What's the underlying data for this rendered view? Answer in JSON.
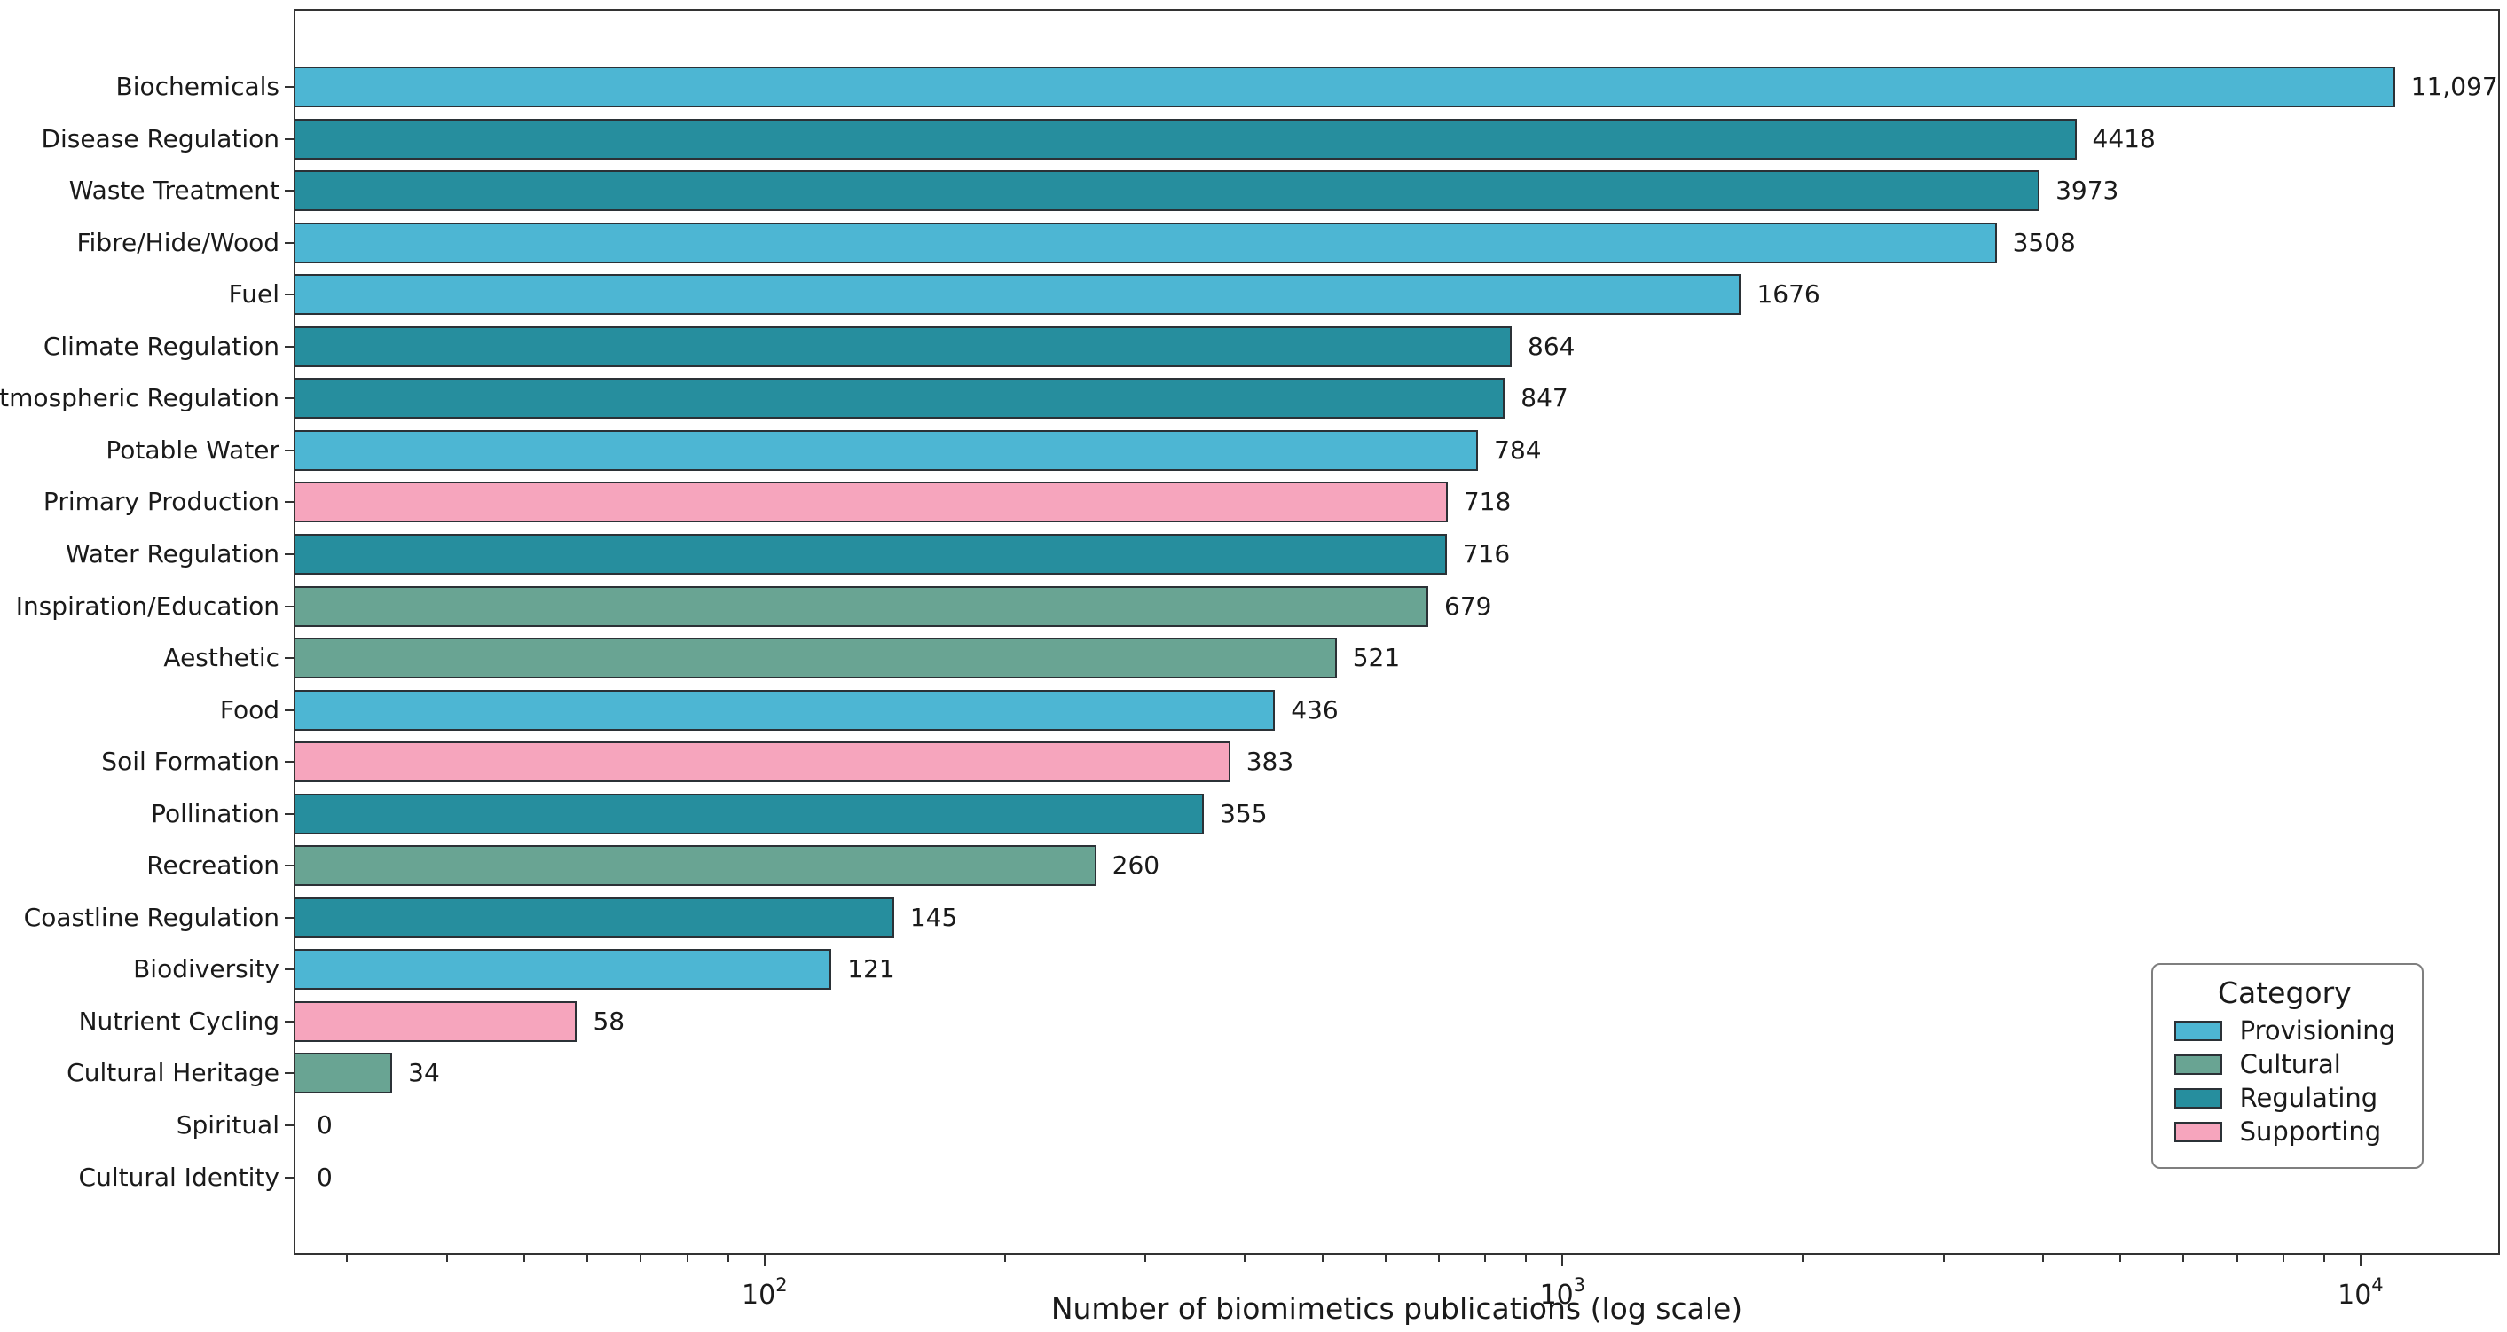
{
  "chart_data": {
    "type": "bar",
    "orientation": "horizontal",
    "x_scale": "log",
    "xlabel": "Number of biomimetics publications (log scale)",
    "xlim": [
      25.7,
      14950
    ],
    "grid": false,
    "x_ticks": [
      {
        "value": 100,
        "base": "10",
        "exp": "2",
        "label": "10^2"
      },
      {
        "value": 1000,
        "base": "10",
        "exp": "3",
        "label": "10^3"
      },
      {
        "value": 10000,
        "base": "10",
        "exp": "4",
        "label": "10^4"
      }
    ],
    "bars": [
      {
        "label": "Biochemicals",
        "value": 11097,
        "display": "11,097",
        "group": "Provisioning"
      },
      {
        "label": "Disease Regulation",
        "value": 4418,
        "display": "4418",
        "group": "Regulating"
      },
      {
        "label": "Waste Treatment",
        "value": 3973,
        "display": "3973",
        "group": "Regulating"
      },
      {
        "label": "Fibre/Hide/Wood",
        "value": 3508,
        "display": "3508",
        "group": "Provisioning"
      },
      {
        "label": "Fuel",
        "value": 1676,
        "display": "1676",
        "group": "Provisioning"
      },
      {
        "label": "Climate Regulation",
        "value": 864,
        "display": "864",
        "group": "Regulating"
      },
      {
        "label": "Atmospheric Regulation",
        "value": 847,
        "display": "847",
        "group": "Regulating"
      },
      {
        "label": "Potable Water",
        "value": 784,
        "display": "784",
        "group": "Provisioning"
      },
      {
        "label": "Primary Production",
        "value": 718,
        "display": "718",
        "group": "Supporting"
      },
      {
        "label": "Water Regulation",
        "value": 716,
        "display": "716",
        "group": "Regulating"
      },
      {
        "label": "Inspiration/Education",
        "value": 679,
        "display": "679",
        "group": "Cultural"
      },
      {
        "label": "Aesthetic",
        "value": 521,
        "display": "521",
        "group": "Cultural"
      },
      {
        "label": "Food",
        "value": 436,
        "display": "436",
        "group": "Provisioning"
      },
      {
        "label": "Soil Formation",
        "value": 383,
        "display": "383",
        "group": "Supporting"
      },
      {
        "label": "Pollination",
        "value": 355,
        "display": "355",
        "group": "Regulating"
      },
      {
        "label": "Recreation",
        "value": 260,
        "display": "260",
        "group": "Cultural"
      },
      {
        "label": "Coastline Regulation",
        "value": 145,
        "display": "145",
        "group": "Regulating"
      },
      {
        "label": "Biodiversity",
        "value": 121,
        "display": "121",
        "group": "Provisioning"
      },
      {
        "label": "Nutrient Cycling",
        "value": 58,
        "display": "58",
        "group": "Supporting"
      },
      {
        "label": "Cultural Heritage",
        "value": 34,
        "display": "34",
        "group": "Cultural"
      },
      {
        "label": "Spiritual",
        "value": 0,
        "display": "0",
        "group": "Cultural"
      },
      {
        "label": "Cultural Identity",
        "value": 0,
        "display": "0",
        "group": "Cultural"
      }
    ],
    "colors": {
      "Provisioning": "#4db6d3",
      "Cultural": "#69a493",
      "Regulating": "#268e9e",
      "Supporting": "#f6a5bd"
    },
    "edge_color": "#2b3136",
    "spine_color": "#333333",
    "text_color": "#1a1a1a",
    "legend": {
      "title": "Category",
      "position": "lower right",
      "items": [
        {
          "label": "Provisioning",
          "color": "#4db6d3"
        },
        {
          "label": "Cultural",
          "color": "#69a493"
        },
        {
          "label": "Regulating",
          "color": "#268e9e"
        },
        {
          "label": "Supporting",
          "color": "#f6a5bd"
        }
      ]
    }
  }
}
